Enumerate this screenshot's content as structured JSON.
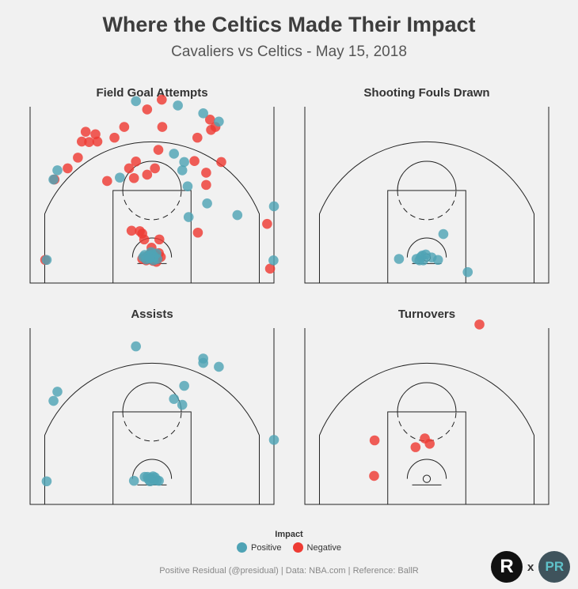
{
  "header": {
    "title": "Where the Celtics Made Their Impact",
    "subtitle": "Cavaliers vs Celtics - May 15, 2018"
  },
  "colors": {
    "positive": "#4fa3b5",
    "negative": "#ee3b33"
  },
  "legend": {
    "title": "Impact",
    "positive_label": "Positive",
    "negative_label": "Negative"
  },
  "footer": {
    "text": "Positive Residual (@presidual)  |  Data: NBA.com  |  Reference: BallR"
  },
  "logos": {
    "left_letter": "R",
    "separator": "x",
    "right_letters": "PR"
  },
  "chart_data": [
    {
      "type": "scatter",
      "title": "Field Goal Attempts",
      "xlabel": "",
      "ylabel": "",
      "units": "feet, basket at (0,0), x = sideline-to-sideline, y = distance from basket toward half court",
      "xlim": [
        -25,
        25
      ],
      "ylim": [
        -5.25,
        31
      ],
      "series": [
        {
          "name": "Positive",
          "points": [
            [
              -21.6,
              -0.5
            ],
            [
              -19.4,
              17.9
            ],
            [
              -20.2,
              16.0
            ],
            [
              -3.3,
              32.1
            ],
            [
              5.3,
              31.2
            ],
            [
              10.5,
              29.6
            ],
            [
              13.7,
              27.9
            ],
            [
              6.6,
              19.6
            ],
            [
              4.5,
              21.3
            ],
            [
              6.2,
              17.9
            ],
            [
              7.3,
              14.6
            ],
            [
              11.3,
              11.1
            ],
            [
              7.5,
              8.3
            ],
            [
              17.5,
              8.7
            ],
            [
              24.9,
              -0.6
            ],
            [
              -1.8,
              0.1
            ],
            [
              0,
              0.6
            ],
            [
              0.4,
              0.2
            ],
            [
              -1.2,
              -0.4
            ],
            [
              0.3,
              -0.6
            ],
            [
              -0.4,
              -0.1
            ],
            [
              0.9,
              0.8
            ],
            [
              -0.6,
              0.4
            ],
            [
              -1.5,
              0.5
            ],
            [
              1.1,
              -0.3
            ],
            [
              -0.2,
              1.1
            ],
            [
              -0.5,
              -0.2
            ],
            [
              25.0,
              10.5
            ],
            [
              -6.6,
              16.4
            ]
          ]
        },
        {
          "name": "Negative",
          "points": [
            [
              -21.9,
              -0.5
            ],
            [
              -20.0,
              16.0
            ],
            [
              -17.3,
              18.3
            ],
            [
              -15.2,
              20.5
            ],
            [
              -14.4,
              23.8
            ],
            [
              -13.6,
              25.8
            ],
            [
              -12.9,
              23.7
            ],
            [
              -11.6,
              25.3
            ],
            [
              -11.2,
              23.8
            ],
            [
              -7.7,
              24.6
            ],
            [
              -5.7,
              26.8
            ],
            [
              -1.0,
              30.4
            ],
            [
              2.0,
              32.4
            ],
            [
              -9.2,
              15.7
            ],
            [
              -4.7,
              18.3
            ],
            [
              -3.3,
              19.7
            ],
            [
              -3.7,
              16.3
            ],
            [
              -1.0,
              17.0
            ],
            [
              0.6,
              18.3
            ],
            [
              1.3,
              22.1
            ],
            [
              2.1,
              26.8
            ],
            [
              8.7,
              19.8
            ],
            [
              11.1,
              17.4
            ],
            [
              11.1,
              14.9
            ],
            [
              9.3,
              24.6
            ],
            [
              11.9,
              28.3
            ],
            [
              12.1,
              26.2
            ],
            [
              13.0,
              26.8
            ],
            [
              14.2,
              19.6
            ],
            [
              -4.2,
              5.5
            ],
            [
              -2.0,
              4.9
            ],
            [
              -2.5,
              5.4
            ],
            [
              -1.6,
              3.7
            ],
            [
              -0.1,
              2.0
            ],
            [
              1.5,
              3.7
            ],
            [
              9.4,
              5.1
            ],
            [
              23.6,
              6.9
            ],
            [
              24.2,
              -2.3
            ],
            [
              0.8,
              0.5
            ],
            [
              1.2,
              -0.2
            ],
            [
              -0.9,
              0.3
            ],
            [
              0.2,
              -0.7
            ],
            [
              1.8,
              0.1
            ],
            [
              -0.3,
              0.8
            ],
            [
              0.5,
              -0.1
            ],
            [
              -1.2,
              -0.6
            ],
            [
              1.4,
              0.9
            ],
            [
              -2.0,
              -0.3
            ],
            [
              0.9,
              -0.9
            ]
          ]
        }
      ]
    },
    {
      "type": "scatter",
      "title": "Shooting Fouls Drawn",
      "xlabel": "",
      "ylabel": "",
      "units": "feet, basket at (0,0)",
      "xlim": [
        -25,
        25
      ],
      "ylim": [
        -5.25,
        31
      ],
      "series": [
        {
          "name": "Positive",
          "points": [
            [
              -5.7,
              -0.3
            ],
            [
              -2.1,
              -0.3
            ],
            [
              -1.2,
              0.1
            ],
            [
              -0.7,
              -0.6
            ],
            [
              -1.5,
              -0.6
            ],
            [
              -0.9,
              0.4
            ],
            [
              -0.2,
              0.6
            ],
            [
              1.0,
              0.0
            ],
            [
              2.3,
              -0.5
            ],
            [
              3.4,
              4.8
            ],
            [
              8.4,
              -3.0
            ]
          ]
        },
        {
          "name": "Negative",
          "points": []
        }
      ]
    },
    {
      "type": "scatter",
      "title": "Assists",
      "xlabel": "",
      "ylabel": "",
      "units": "feet, basket at (0,0)",
      "xlim": [
        -25,
        25
      ],
      "ylim": [
        -5.25,
        31
      ],
      "series": [
        {
          "name": "Positive",
          "points": [
            [
              -21.6,
              -0.5
            ],
            [
              -19.4,
              17.9
            ],
            [
              -20.2,
              16.0
            ],
            [
              -3.3,
              27.2
            ],
            [
              10.5,
              24.7
            ],
            [
              10.5,
              23.8
            ],
            [
              13.7,
              23.0
            ],
            [
              6.6,
              19.1
            ],
            [
              4.5,
              16.4
            ],
            [
              6.2,
              15.2
            ],
            [
              25.0,
              8.0
            ],
            [
              -3.7,
              -0.4
            ],
            [
              -1.5,
              0.4
            ],
            [
              -0.2,
              0.2
            ],
            [
              0.4,
              -0.3
            ],
            [
              -0.9,
              0.4
            ],
            [
              0.6,
              0.3
            ],
            [
              1.0,
              -0.3
            ],
            [
              -0.4,
              -0.5
            ],
            [
              0.2,
              0.5
            ],
            [
              1.4,
              -0.4
            ],
            [
              -0.7,
              -0.1
            ]
          ]
        },
        {
          "name": "Negative",
          "points": []
        }
      ]
    },
    {
      "type": "scatter",
      "title": "Turnovers",
      "xlabel": "",
      "ylabel": "",
      "units": "feet, basket at (0,0)",
      "xlim": [
        -25,
        25
      ],
      "ylim": [
        -5.25,
        31
      ],
      "series": [
        {
          "name": "Positive",
          "points": []
        },
        {
          "name": "Negative",
          "points": [
            [
              -10.7,
              7.9
            ],
            [
              -0.4,
              8.3
            ],
            [
              0.6,
              7.2
            ],
            [
              -2.3,
              6.5
            ],
            [
              -10.8,
              0.6
            ],
            [
              10.8,
              31.7
            ]
          ]
        }
      ]
    }
  ]
}
